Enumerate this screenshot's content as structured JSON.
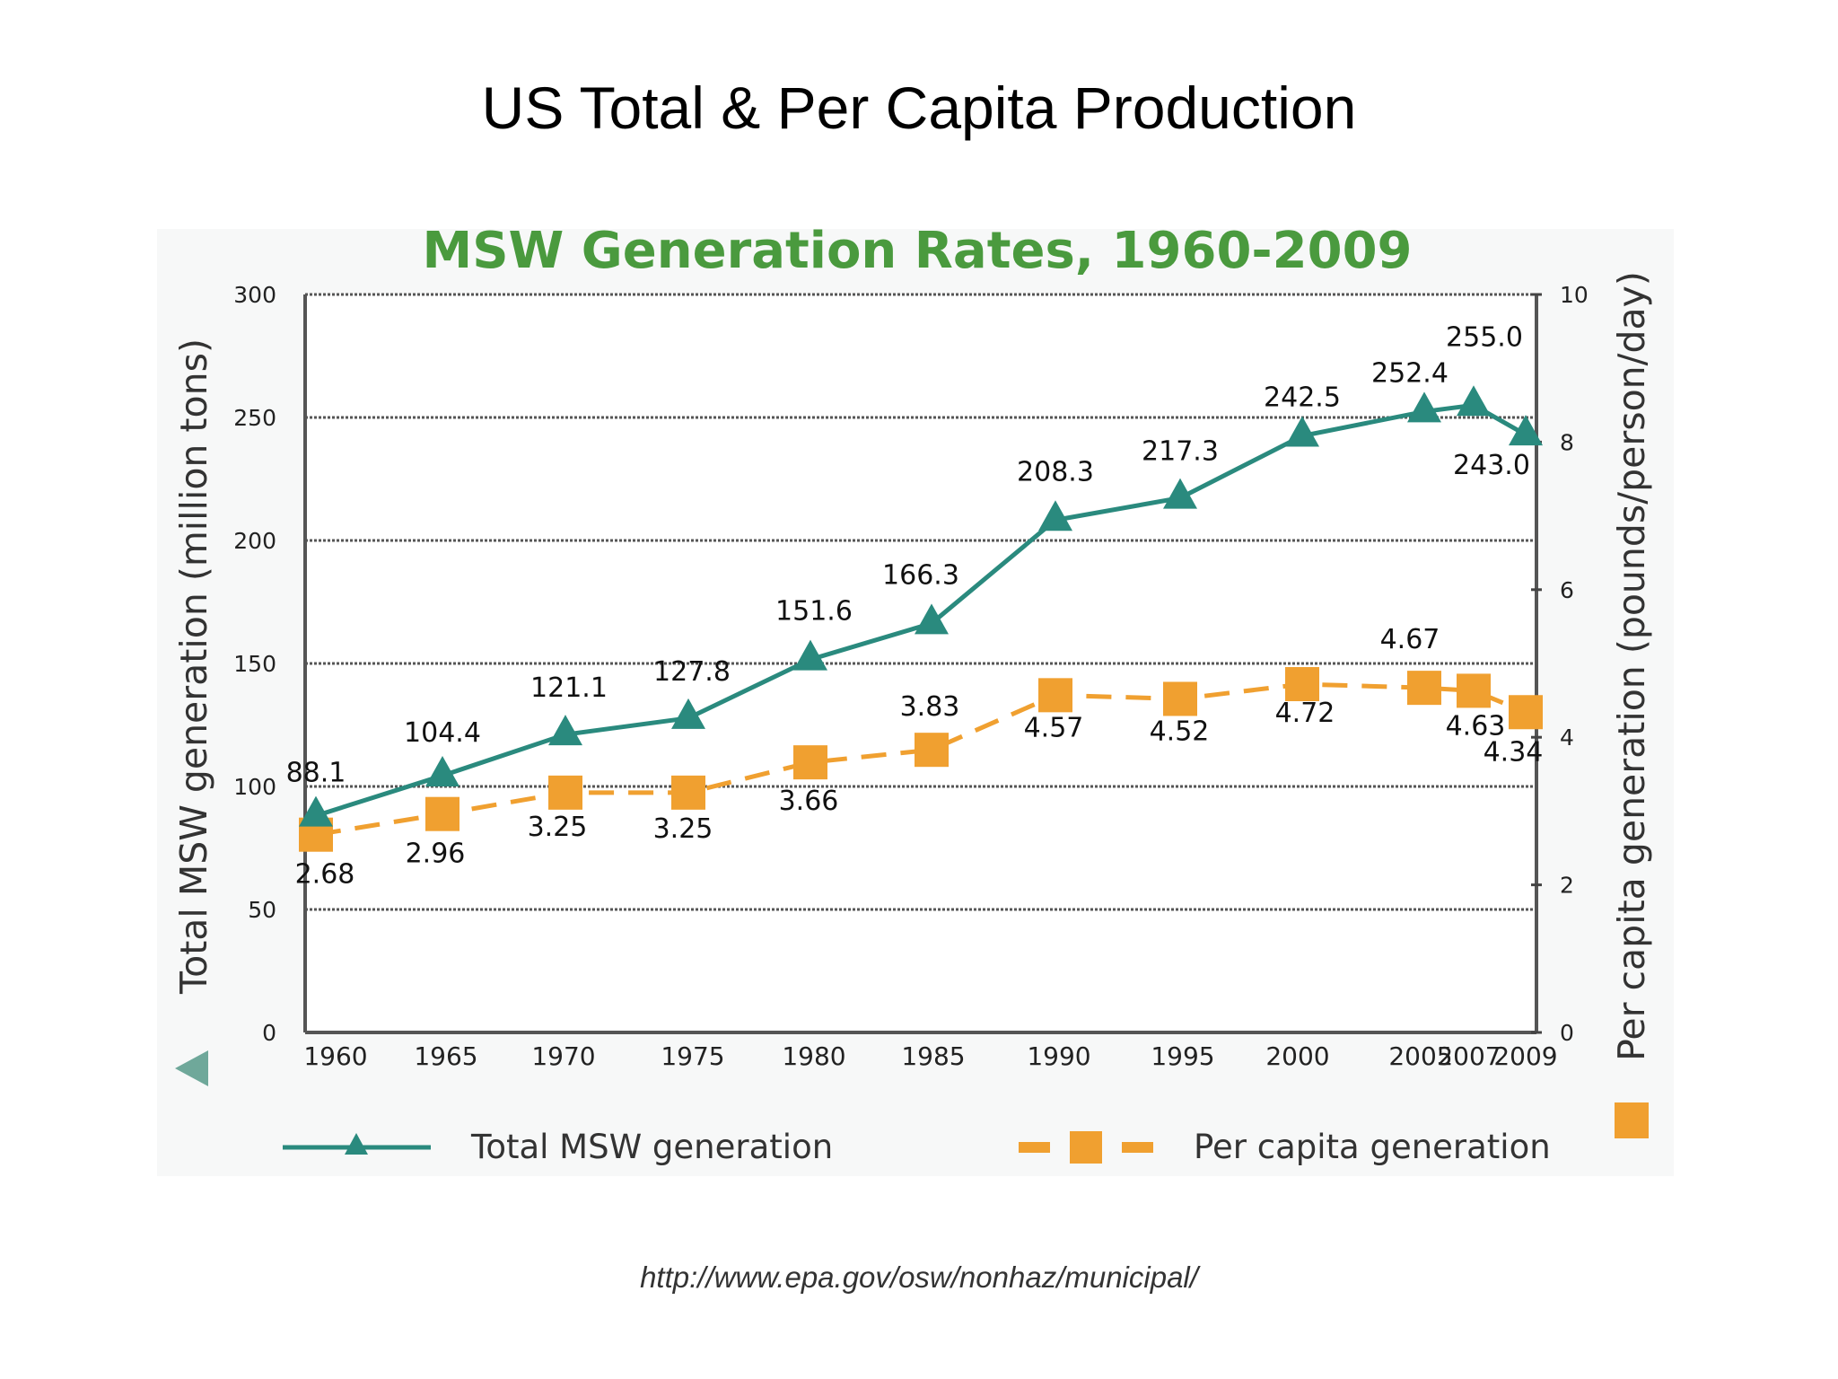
{
  "slide": {
    "title": "US Total & Per Capita Production",
    "source": "http://www.epa.gov/osw/nonhaz/municipal/"
  },
  "colors": {
    "total": "#2a8a7e",
    "per_capita": "#f0a030",
    "chart_title": "#4a9a3e",
    "gridline": "#555555"
  },
  "chart_data": {
    "type": "line",
    "title": "MSW Generation Rates, 1960-2009",
    "categories": [
      "1960",
      "1965",
      "1970",
      "1975",
      "1980",
      "1985",
      "1990",
      "1995",
      "2000",
      "2005",
      "2007",
      "2009"
    ],
    "series": [
      {
        "name": "Total MSW generation",
        "axis": "left",
        "marker": "triangle",
        "values": [
          88.1,
          104.4,
          121.1,
          127.8,
          151.6,
          166.3,
          208.3,
          217.3,
          242.5,
          252.4,
          255.0,
          243.0
        ],
        "labels": [
          "88.1",
          "104.4",
          "121.1",
          "127.8",
          "151.6",
          "166.3",
          "208.3",
          "217.3",
          "242.5",
          "252.4",
          "255.0",
          "243.0"
        ]
      },
      {
        "name": "Per capita generation",
        "axis": "right",
        "marker": "square",
        "line_style": "dashed",
        "values": [
          2.68,
          2.96,
          3.25,
          3.25,
          3.66,
          3.83,
          4.57,
          4.52,
          4.72,
          4.67,
          4.63,
          4.34
        ],
        "labels": [
          "2.68",
          "2.96",
          "3.25",
          "3.25",
          "3.66",
          "3.83",
          "4.57",
          "4.52",
          "4.72",
          "4.67",
          "4.63",
          "4.34"
        ]
      }
    ],
    "ylabel": "Total MSW generation (million tons)",
    "ylim": [
      0,
      300
    ],
    "yticks": [
      0,
      50,
      100,
      150,
      200,
      250,
      300
    ],
    "y2label": "Per capita generation (pounds/person/day)",
    "y2lim": [
      0,
      10
    ],
    "y2ticks": [
      0,
      2,
      4,
      6,
      8,
      10
    ],
    "grid": true,
    "legend": {
      "placement": "bottom",
      "entries": [
        "Total MSW generation",
        "Per capita generation"
      ]
    }
  }
}
